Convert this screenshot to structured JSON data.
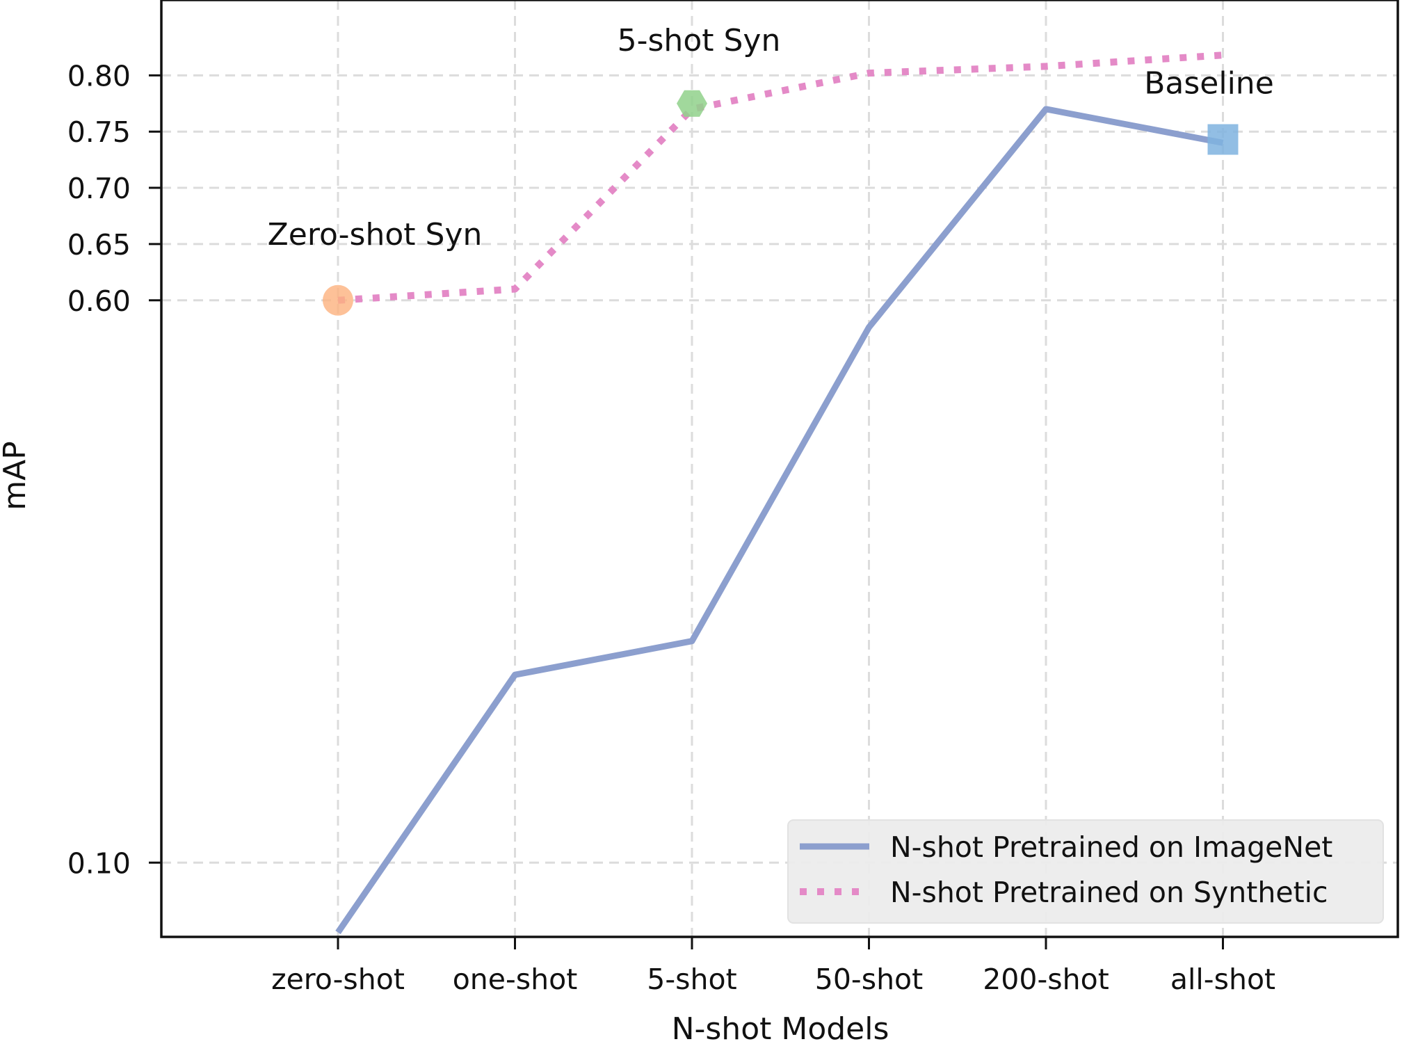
{
  "chart_data": {
    "type": "line",
    "categories": [
      "zero-shot",
      "one-shot",
      "5-shot",
      "50-shot",
      "200-shot",
      "all-shot"
    ],
    "xlabel": "N-shot Models",
    "ylabel": "mAP",
    "ylim": [
      0.034,
      0.867
    ],
    "yticks": [
      {
        "value": 0.1,
        "label": "0.10"
      },
      {
        "value": 0.6,
        "label": "0.60"
      },
      {
        "value": 0.65,
        "label": "0.65"
      },
      {
        "value": 0.7,
        "label": "0.70"
      },
      {
        "value": 0.75,
        "label": "0.75"
      },
      {
        "value": 0.8,
        "label": "0.80"
      }
    ],
    "grid": true,
    "legend_position": "bottom-right",
    "series": [
      {
        "name": "N-shot Pretrained on ImageNet",
        "style": "solid",
        "color": "#8c9fce",
        "values": [
          0.038,
          0.267,
          0.297,
          0.576,
          0.77,
          0.74
        ]
      },
      {
        "name": "N-shot Pretrained on Synthetic",
        "style": "dotted",
        "color": "#e48ac7",
        "values": [
          0.6,
          0.61,
          0.77,
          0.802,
          0.808,
          0.818
        ]
      }
    ],
    "annotations": [
      {
        "text": "Zero-shot Syn",
        "category": "zero-shot",
        "value": 0.6,
        "marker": "circle",
        "color": "#fdb27e"
      },
      {
        "text": "5-shot Syn",
        "category": "5-shot",
        "value": 0.775,
        "marker": "hexagon",
        "color": "#91d18b"
      },
      {
        "text": "Baseline",
        "category": "all-shot",
        "value": 0.743,
        "marker": "square",
        "color": "#7fb3df"
      }
    ]
  }
}
